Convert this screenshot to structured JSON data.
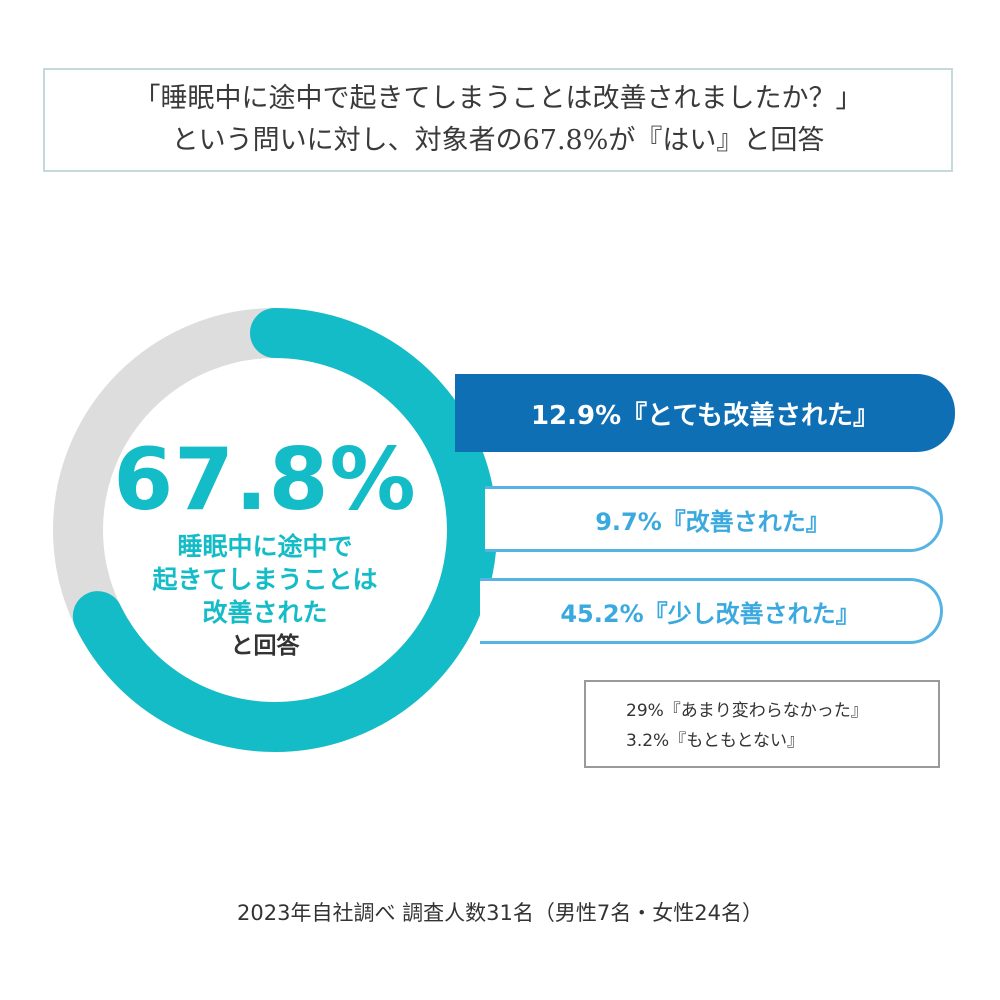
{
  "title": {
    "line1": "「睡眠中に途中で起きてしまうことは改善されましたか？」",
    "line2": "という問いに対し、対象者の67.8%が『はい』と回答"
  },
  "center": {
    "percent": "67.8%",
    "line1": "睡眠中に途中で",
    "line2": "起きてしまうことは",
    "line3": "改善された",
    "line4": "と回答"
  },
  "bars": [
    "12.9%『とても改善された』",
    "9.7%『改善された』",
    "45.2%『少し改善された』"
  ],
  "other": [
    "29%『あまり変わらなかった』",
    "3.2%『もともとない』"
  ],
  "footnote": "2023年自社調べ 調査人数31名（男性7名・女性24名）",
  "colors": {
    "accent": "#13bcc6",
    "track": "#dddddd",
    "dark_blue": "#0f6fb5",
    "light_blue": "#56b3e3"
  },
  "chart_data": {
    "type": "pie",
    "categories": [
      "とても改善された",
      "改善された",
      "少し改善された",
      "あまり変わらなかった",
      "もともとない"
    ],
    "values": [
      12.9,
      9.7,
      45.2,
      29,
      3.2
    ],
    "highlight_total": 67.8
  }
}
